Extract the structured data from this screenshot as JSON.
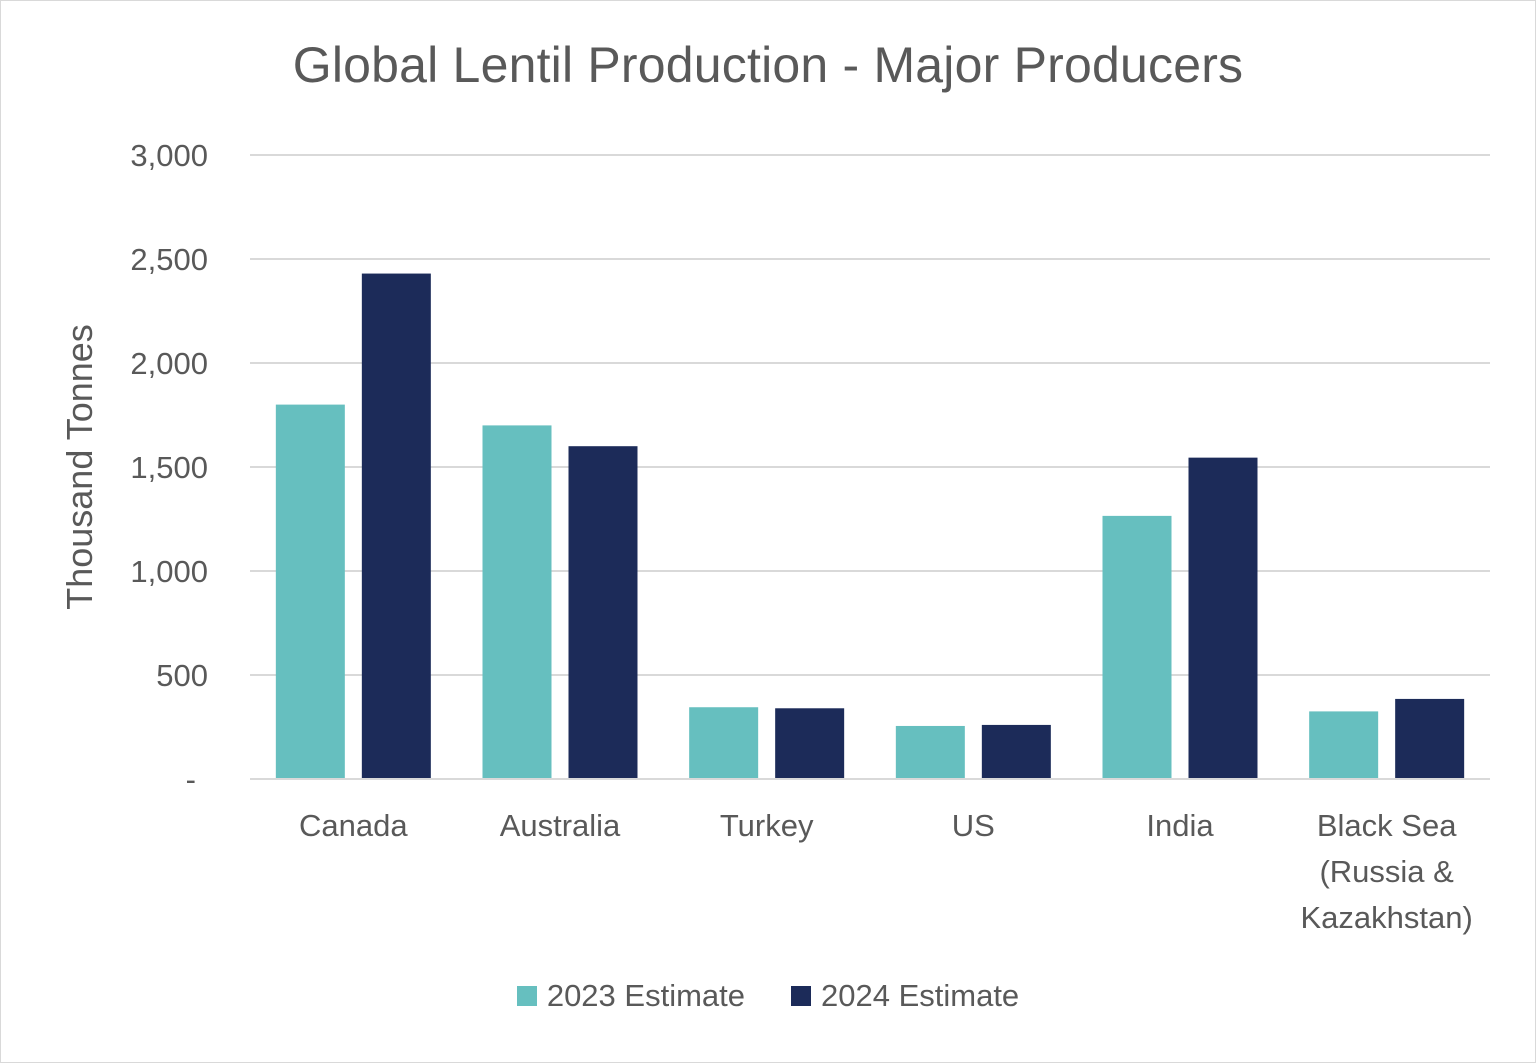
{
  "chart_data": {
    "type": "bar",
    "title": "Global Lentil Production - Major Producers",
    "xlabel": "",
    "ylabel": "Thousand Tonnes",
    "ylim": [
      0,
      3000
    ],
    "yticks": [
      {
        "value": 0,
        "label": "-"
      },
      {
        "value": 500,
        "label": "500"
      },
      {
        "value": 1000,
        "label": "1,000"
      },
      {
        "value": 1500,
        "label": "1,500"
      },
      {
        "value": 2000,
        "label": "2,000"
      },
      {
        "value": 2500,
        "label": "2,500"
      },
      {
        "value": 3000,
        "label": "3,000"
      }
    ],
    "categories": [
      [
        "Canada"
      ],
      [
        "Australia"
      ],
      [
        "Turkey"
      ],
      [
        "US"
      ],
      [
        "India"
      ],
      [
        "Black Sea",
        "(Russia &",
        "Kazakhstan)"
      ]
    ],
    "series": [
      {
        "name": "2023 Estimate",
        "color": "#66bfbf",
        "values": [
          1800,
          1700,
          345,
          255,
          1265,
          325
        ]
      },
      {
        "name": "2024 Estimate",
        "color": "#1c2b59",
        "values": [
          2430,
          1600,
          340,
          260,
          1545,
          385
        ]
      }
    ],
    "grid": true,
    "legend": "bottom-center"
  }
}
